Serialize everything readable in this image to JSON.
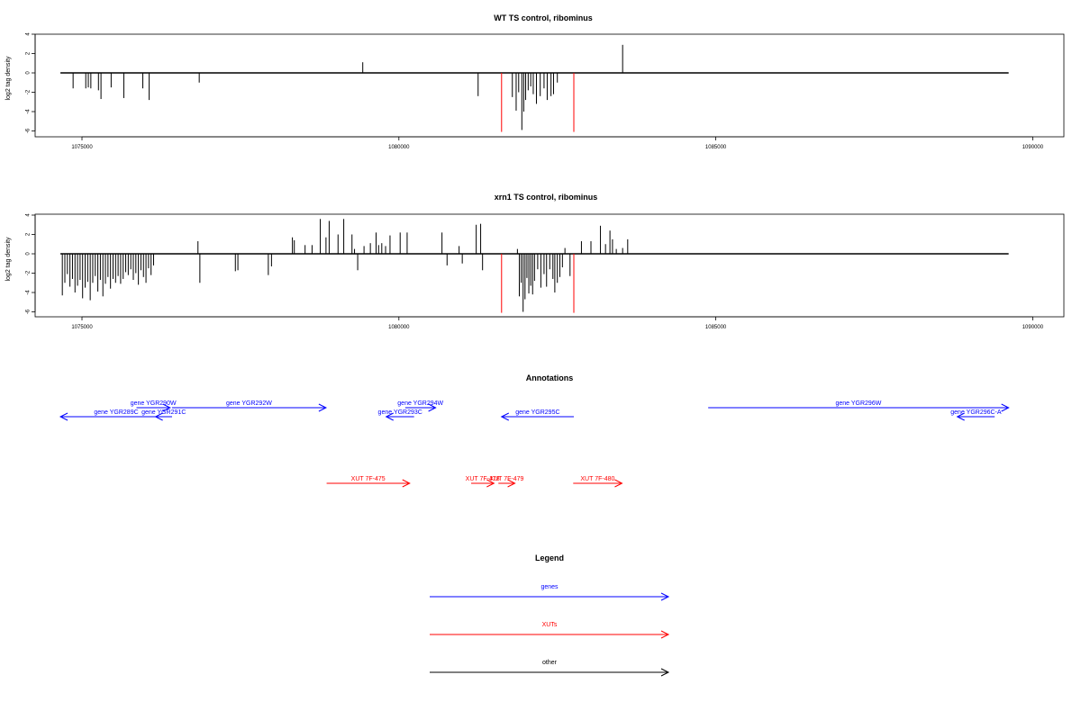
{
  "colors": {
    "genes": "#0000ff",
    "xuts": "#ff0000",
    "other": "#000000",
    "bars": "#000000",
    "boundary": "#ff0000"
  },
  "chart_data": [
    {
      "type": "bar",
      "title": "WT TS control, ribominus",
      "ylabel": "log2 tag density",
      "xlabel": "",
      "xlim": [
        1074660,
        1089620
      ],
      "ylim": [
        -6,
        4
      ],
      "xticks": [
        1075000,
        1080000,
        1085000,
        1090000
      ],
      "xtick_labels": [
        "1075000",
        "1080000",
        "1085000",
        "1090000"
      ],
      "yticks": [
        -6,
        -4,
        -2,
        0,
        2,
        4
      ],
      "ytick_labels": [
        "-6",
        "-4",
        "-2",
        "0",
        "2",
        "4"
      ],
      "baseline_range": [
        1074660,
        1089620
      ],
      "boundaries": [
        1081620,
        1082760
      ],
      "boundary_bottom": -6.1,
      "x": [
        1074860,
        1075060,
        1075100,
        1075140,
        1075260,
        1075300,
        1075460,
        1075660,
        1075960,
        1076060,
        1076850,
        1079430,
        1081250,
        1081790,
        1081850,
        1081890,
        1081940,
        1081970,
        1082000,
        1082040,
        1082080,
        1082120,
        1082170,
        1082230,
        1082290,
        1082340,
        1082400,
        1082440,
        1082500,
        1083530
      ],
      "y": [
        -1.6,
        -1.6,
        -1.5,
        -1.6,
        -1.8,
        -2.7,
        -1.5,
        -2.6,
        -1.6,
        -2.8,
        -1.0,
        1.1,
        -2.4,
        -2.5,
        -3.9,
        -2.0,
        -5.9,
        -4.0,
        -2.8,
        -1.8,
        -1.4,
        -2.2,
        -3.2,
        -2.4,
        -1.6,
        -2.8,
        -2.4,
        -2.2,
        -1.0,
        2.9
      ]
    },
    {
      "type": "bar",
      "title": "xrn1 TS control, ribominus",
      "ylabel": "log2 tag density",
      "xlabel": "",
      "xlim": [
        1074660,
        1089620
      ],
      "ylim": [
        -6,
        4
      ],
      "xticks": [
        1075000,
        1080000,
        1085000,
        1090000
      ],
      "xtick_labels": [
        "1075000",
        "1080000",
        "1085000",
        "1090000"
      ],
      "yticks": [
        -6,
        -4,
        -2,
        0,
        2,
        4
      ],
      "ytick_labels": [
        "-6",
        "-4",
        "-2",
        "0",
        "2",
        "4"
      ],
      "baseline_range": [
        1074660,
        1089620
      ],
      "boundaries": [
        1081620,
        1082760
      ],
      "boundary_bottom": -6.1,
      "x": [
        1074690,
        1074730,
        1074770,
        1074810,
        1074850,
        1074890,
        1074930,
        1074970,
        1075010,
        1075050,
        1075090,
        1075130,
        1075170,
        1075210,
        1075250,
        1075290,
        1075330,
        1075370,
        1075410,
        1075450,
        1075490,
        1075530,
        1075570,
        1075610,
        1075650,
        1075690,
        1075730,
        1075770,
        1075810,
        1075850,
        1075890,
        1075930,
        1075970,
        1076010,
        1076050,
        1076090,
        1076130,
        1076830,
        1076860,
        1077420,
        1077460,
        1077940,
        1077990,
        1078320,
        1078350,
        1078520,
        1078630,
        1078760,
        1078850,
        1078900,
        1079040,
        1079130,
        1079260,
        1079300,
        1079350,
        1079450,
        1079550,
        1079640,
        1079680,
        1079730,
        1079790,
        1079860,
        1080020,
        1080130,
        1080680,
        1080760,
        1080950,
        1081000,
        1081220,
        1081290,
        1081320,
        1081870,
        1081900,
        1081930,
        1081960,
        1081990,
        1082020,
        1082050,
        1082080,
        1082110,
        1082140,
        1082190,
        1082240,
        1082290,
        1082330,
        1082380,
        1082430,
        1082460,
        1082500,
        1082540,
        1082580,
        1082620,
        1082700,
        1082760,
        1082880,
        1083030,
        1083180,
        1083260,
        1083330,
        1083370,
        1083430,
        1083530,
        1083610
      ],
      "y": [
        -4.3,
        -3.0,
        -2.1,
        -3.4,
        -2.6,
        -4.0,
        -3.3,
        -2.7,
        -4.6,
        -3.5,
        -2.9,
        -4.8,
        -3.0,
        -2.3,
        -3.9,
        -2.7,
        -4.4,
        -3.1,
        -2.4,
        -3.6,
        -2.6,
        -3.0,
        -2.3,
        -3.1,
        -2.6,
        -1.9,
        -2.2,
        -1.6,
        -2.7,
        -2.0,
        -3.2,
        -1.7,
        -2.4,
        -3.0,
        -1.5,
        -2.2,
        -1.2,
        1.3,
        -3.0,
        -1.8,
        -1.7,
        -2.2,
        -1.3,
        1.7,
        1.4,
        0.9,
        0.9,
        3.6,
        1.7,
        3.4,
        2.0,
        3.6,
        2.0,
        0.5,
        -1.7,
        0.8,
        1.1,
        2.2,
        0.9,
        1.1,
        0.8,
        1.9,
        2.2,
        2.2,
        2.2,
        -1.2,
        0.8,
        -1.0,
        3.0,
        3.1,
        -1.7,
        0.5,
        -4.4,
        -3.0,
        -6.0,
        -4.7,
        -2.5,
        -4.1,
        -3.3,
        -4.2,
        -2.8,
        -1.6,
        -3.5,
        -2.1,
        -3.4,
        -1.6,
        -2.6,
        -4.0,
        -3.0,
        -2.4,
        -1.4,
        0.6,
        -2.3,
        -1.4,
        1.3,
        1.3,
        2.9,
        1.0,
        2.4,
        1.5,
        0.5,
        0.6,
        1.5
      ]
    }
  ],
  "annotations": {
    "title": "Annotations",
    "genes": [
      {
        "label": "gene YGR289C",
        "start": 1074660,
        "end": 1076420,
        "dir": "left",
        "row": 2
      },
      {
        "label": "gene YGR290W",
        "start": 1075860,
        "end": 1076390,
        "dir": "right",
        "row": 1
      },
      {
        "label": "gene YGR291C",
        "start": 1076160,
        "end": 1076420,
        "dir": "left",
        "row": 2
      },
      {
        "label": "gene YGR292W",
        "start": 1076420,
        "end": 1078850,
        "dir": "right",
        "row": 1
      },
      {
        "label": "gene YGR293C",
        "start": 1079800,
        "end": 1080240,
        "dir": "left",
        "row": 2
      },
      {
        "label": "gene YGR294W",
        "start": 1080100,
        "end": 1080580,
        "dir": "right",
        "row": 1
      },
      {
        "label": "gene YGR295C",
        "start": 1081620,
        "end": 1082760,
        "dir": "left",
        "row": 2
      },
      {
        "label": "gene YGR296W",
        "start": 1084880,
        "end": 1089620,
        "dir": "right",
        "row": 1
      },
      {
        "label": "gene YGR296C-A",
        "start": 1088810,
        "end": 1089400,
        "dir": "left",
        "row": 2
      }
    ],
    "xuts": [
      {
        "label": "XUT 7F-475",
        "start": 1078860,
        "end": 1080170,
        "dir": "right"
      },
      {
        "label": "XUT 7F-478",
        "start": 1081140,
        "end": 1081500,
        "dir": "right"
      },
      {
        "label": "XUT 7F-479",
        "start": 1081570,
        "end": 1081830,
        "dir": "right"
      },
      {
        "label": "XUT 7F-480",
        "start": 1082750,
        "end": 1083520,
        "dir": "right"
      }
    ]
  },
  "legend": {
    "title": "Legend",
    "items": [
      {
        "label": "genes",
        "color": "#0000ff"
      },
      {
        "label": "XUTs",
        "color": "#ff0000"
      },
      {
        "label": "other",
        "color": "#000000"
      }
    ]
  }
}
